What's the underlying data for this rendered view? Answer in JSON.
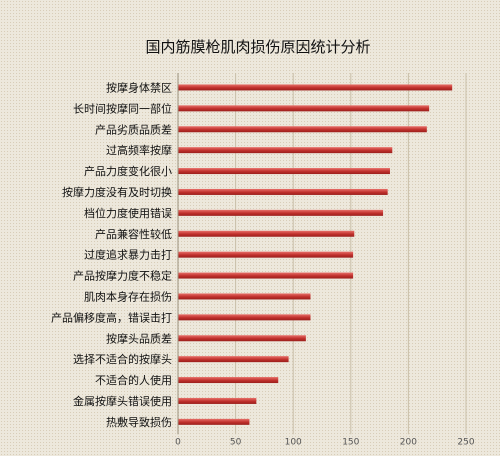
{
  "chart_data": {
    "type": "bar",
    "orientation": "horizontal",
    "title": "国内筋膜枪肌肉损伤原因统计分析",
    "categories": [
      "按摩身体禁区",
      "长时间按摩同一部位",
      "产品劣质品质差",
      "过高频率按摩",
      "产品力度变化很小",
      "按摩力度没有及时切换",
      "档位力度使用错误",
      "产品兼容性较低",
      "过度追求暴力击打",
      "产品按摩力度不稳定",
      "肌肉本身存在损伤",
      "产品偏移度高，错误击打",
      "按摩头品质差",
      "选择不适合的按摩头",
      "不适合的人使用",
      "金属按摩头错误使用",
      "热敷导致损伤"
    ],
    "values": [
      238,
      218,
      216,
      186,
      184,
      182,
      178,
      153,
      152,
      152,
      115,
      115,
      111,
      96,
      87,
      68,
      62
    ],
    "xlim": [
      0,
      250
    ],
    "xticks": [
      0,
      50,
      100,
      150,
      200,
      250
    ],
    "grid": true,
    "bar_color": "#c0302c",
    "bar_color_light": "#e8706a"
  }
}
